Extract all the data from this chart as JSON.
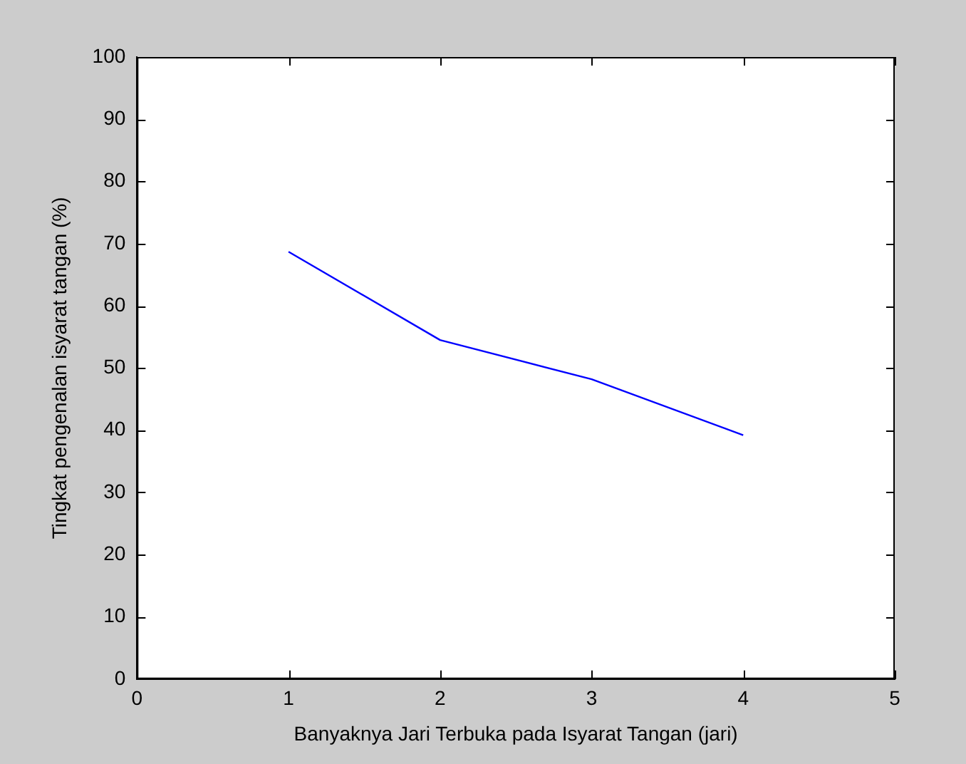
{
  "chart_data": {
    "type": "line",
    "xlabel": "Banyaknya Jari Terbuka pada Isyarat Tangan (jari)",
    "ylabel": "Tingkat pengenalan isyarat tangan (%)",
    "x": [
      1,
      2,
      3,
      4
    ],
    "series": [
      {
        "color": "#0000ff",
        "values": [
          68.7,
          54.5,
          48.2,
          39.2
        ]
      }
    ],
    "xlim": [
      0,
      5
    ],
    "xticks": [
      0,
      1,
      2,
      3,
      4,
      5
    ],
    "ylim": [
      0,
      100
    ],
    "yticks": [
      0,
      10,
      20,
      30,
      40,
      50,
      60,
      70,
      80,
      90,
      100
    ],
    "grid": false,
    "legend": false,
    "marker": "none",
    "line_style": "solid"
  }
}
